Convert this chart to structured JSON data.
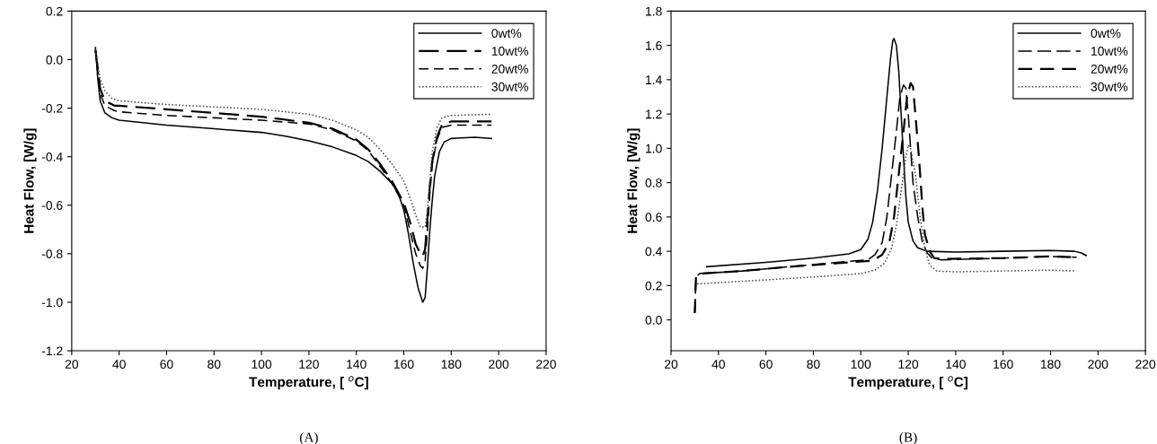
{
  "chart_data": [
    {
      "type": "line",
      "xlabel": "Temperature, [ $^{o}$C]",
      "ylabel": "Heat Flow, [W/g]",
      "annotations": [
        "(A)"
      ],
      "xlim": [
        20,
        220
      ],
      "ylim": [
        -1.2,
        0.2
      ],
      "xticks": [
        20,
        40,
        60,
        80,
        100,
        120,
        140,
        160,
        180,
        200,
        220
      ],
      "yticks": [
        -1.2,
        {
          "value": -1,
          "label": "-1.0"
        },
        -0.8,
        -0.6,
        -0.4,
        -0.2,
        {
          "value": 0,
          "label": "0.0"
        },
        0.2
      ],
      "grid": false,
      "legend": "top right",
      "marker": "none",
      "series": [
        {
          "name": "0wt%",
          "color": "#000000",
          "line_style": "solid",
          "x": [
            30,
            31,
            32,
            34,
            37,
            40,
            60,
            80,
            100,
            110,
            120,
            130,
            140,
            145,
            150,
            155,
            158,
            160,
            162,
            164,
            166,
            168,
            169,
            170,
            171,
            172,
            173,
            175,
            177,
            180,
            190,
            197
          ],
          "values": [
            0.05,
            -0.08,
            -0.17,
            -0.22,
            -0.24,
            -0.25,
            -0.27,
            -0.285,
            -0.3,
            -0.315,
            -0.335,
            -0.36,
            -0.395,
            -0.42,
            -0.46,
            -0.51,
            -0.56,
            -0.62,
            -0.72,
            -0.84,
            -0.94,
            -1.0,
            -0.98,
            -0.85,
            -0.7,
            -0.58,
            -0.48,
            -0.38,
            -0.34,
            -0.325,
            -0.32,
            -0.325
          ]
        },
        {
          "name": "10wt%",
          "color": "#000000",
          "line_style": "dashed",
          "x": [
            30,
            32,
            34,
            38,
            40,
            60,
            80,
            100,
            120,
            130,
            140,
            145,
            150,
            155,
            160,
            163,
            165,
            167,
            168,
            169,
            170,
            171,
            172,
            174,
            176,
            180,
            197
          ],
          "values": [
            0.04,
            -0.12,
            -0.17,
            -0.19,
            -0.19,
            -0.205,
            -0.22,
            -0.235,
            -0.26,
            -0.285,
            -0.33,
            -0.37,
            -0.43,
            -0.5,
            -0.59,
            -0.68,
            -0.76,
            -0.8,
            -0.81,
            -0.78,
            -0.65,
            -0.52,
            -0.42,
            -0.32,
            -0.27,
            -0.255,
            -0.255
          ]
        },
        {
          "name": "20wt%",
          "color": "#000000",
          "line_style": "dashed",
          "x": [
            30,
            32,
            34,
            38,
            40,
            60,
            80,
            100,
            120,
            130,
            140,
            145,
            150,
            155,
            160,
            163,
            165,
            167,
            168,
            169,
            170,
            171,
            172,
            174,
            176,
            180,
            197
          ],
          "values": [
            0.04,
            -0.14,
            -0.19,
            -0.21,
            -0.215,
            -0.23,
            -0.24,
            -0.25,
            -0.265,
            -0.29,
            -0.335,
            -0.375,
            -0.44,
            -0.51,
            -0.6,
            -0.72,
            -0.8,
            -0.85,
            -0.86,
            -0.83,
            -0.7,
            -0.55,
            -0.43,
            -0.33,
            -0.28,
            -0.27,
            -0.27
          ]
        },
        {
          "name": "30wt%",
          "color": "#444444",
          "line_style": "dotted",
          "x": [
            30,
            32,
            34,
            37,
            40,
            60,
            80,
            100,
            120,
            130,
            140,
            145,
            150,
            155,
            160,
            163,
            165,
            167,
            169,
            170,
            171,
            172,
            174,
            176,
            180,
            197
          ],
          "values": [
            0.04,
            -0.08,
            -0.13,
            -0.16,
            -0.17,
            -0.185,
            -0.195,
            -0.205,
            -0.225,
            -0.25,
            -0.29,
            -0.32,
            -0.37,
            -0.43,
            -0.5,
            -0.58,
            -0.64,
            -0.69,
            -0.69,
            -0.62,
            -0.5,
            -0.38,
            -0.28,
            -0.24,
            -0.23,
            -0.225
          ]
        }
      ]
    },
    {
      "type": "line",
      "xlabel": "Temperature, [ $^{o}$C]",
      "ylabel": "Heat Flow, [W/g]",
      "annotations": [
        "(B)"
      ],
      "xlim": [
        20,
        220
      ],
      "ylim": [
        -0.18,
        1.8
      ],
      "xticks": [
        20,
        40,
        60,
        80,
        100,
        120,
        140,
        160,
        180,
        200,
        220
      ],
      "yticks": [
        {
          "value": 0,
          "label": "0.0"
        },
        0.2,
        0.4,
        0.6,
        0.8,
        {
          "value": 1,
          "label": "1.0"
        },
        1.2,
        1.4,
        1.6,
        1.8
      ],
      "grid": false,
      "legend": "top right",
      "marker": "none",
      "series": [
        {
          "name": "0wt%",
          "color": "#000000",
          "line_style": "solid",
          "x": [
            35,
            60,
            80,
            95,
            100,
            103,
            105,
            107,
            109,
            111,
            112.5,
            113.5,
            114,
            115,
            116,
            117,
            118,
            119,
            120,
            122,
            124,
            128,
            140,
            160,
            180,
            190,
            193,
            195
          ],
          "values": [
            0.31,
            0.335,
            0.36,
            0.385,
            0.41,
            0.47,
            0.57,
            0.75,
            1.0,
            1.3,
            1.52,
            1.63,
            1.64,
            1.6,
            1.45,
            1.2,
            0.95,
            0.72,
            0.57,
            0.46,
            0.42,
            0.4,
            0.395,
            0.4,
            0.405,
            0.4,
            0.39,
            0.375
          ]
        },
        {
          "name": "10wt%",
          "color": "#000000",
          "line_style": "dashed",
          "x": [
            30,
            30.5,
            32,
            50,
            70,
            90,
            103,
            106,
            109,
            111,
            113,
            115,
            116.5,
            118,
            119,
            120,
            121,
            122,
            124,
            126,
            128,
            130,
            134,
            160,
            180,
            191
          ],
          "values": [
            0.04,
            0.25,
            0.27,
            0.285,
            0.31,
            0.335,
            0.35,
            0.38,
            0.45,
            0.6,
            0.85,
            1.1,
            1.3,
            1.37,
            1.35,
            1.2,
            1.0,
            0.8,
            0.6,
            0.45,
            0.39,
            0.36,
            0.35,
            0.36,
            0.37,
            0.365
          ]
        },
        {
          "name": "20wt%",
          "color": "#000000",
          "line_style": "dashed",
          "x": [
            30,
            30.5,
            32,
            50,
            70,
            90,
            105,
            109,
            112,
            114,
            116,
            118,
            119.5,
            121,
            122,
            123,
            124.5,
            126,
            127,
            129,
            131,
            134,
            160,
            180,
            192
          ],
          "values": [
            0.04,
            0.25,
            0.27,
            0.285,
            0.31,
            0.33,
            0.345,
            0.38,
            0.45,
            0.6,
            0.85,
            1.1,
            1.3,
            1.38,
            1.36,
            1.2,
            0.95,
            0.65,
            0.5,
            0.4,
            0.36,
            0.355,
            0.36,
            0.37,
            0.365
          ]
        },
        {
          "name": "30wt%",
          "color": "#444444",
          "line_style": "dotted",
          "x": [
            31,
            50,
            80,
            100,
            106,
            110,
            113,
            115,
            117,
            119,
            120,
            121,
            123,
            125,
            127,
            129,
            132,
            140,
            160,
            180,
            190
          ],
          "values": [
            0.21,
            0.225,
            0.25,
            0.27,
            0.29,
            0.33,
            0.42,
            0.55,
            0.75,
            0.95,
            1.02,
            1.0,
            0.85,
            0.6,
            0.42,
            0.32,
            0.285,
            0.28,
            0.285,
            0.29,
            0.285
          ]
        }
      ]
    }
  ]
}
